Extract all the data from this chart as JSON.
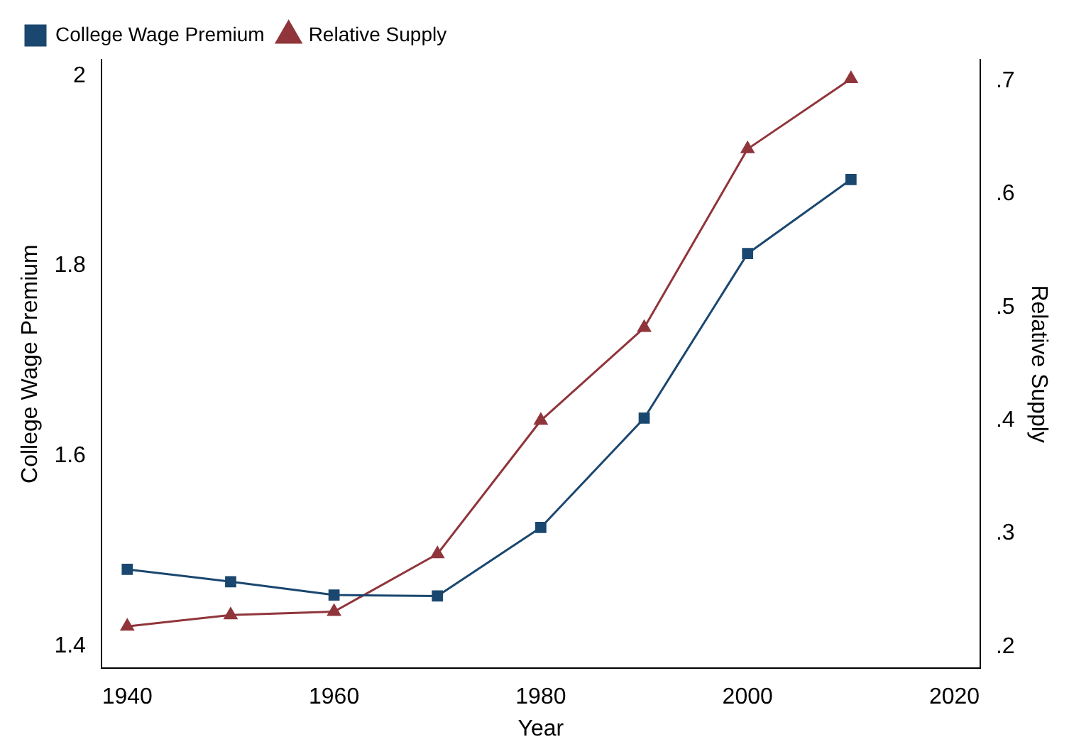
{
  "chart_data": {
    "type": "line",
    "xlabel": "Year",
    "ylabel": "College Wage Premium",
    "y2label": "Relative Supply",
    "x": [
      1940,
      1950,
      1960,
      1970,
      1980,
      1990,
      2000,
      2010
    ],
    "series": [
      {
        "name": "College Wage Premium",
        "color": "#1a476f",
        "marker": "square",
        "values": [
          1.481,
          1.468,
          1.454,
          1.453,
          1.525,
          1.64,
          1.813,
          1.891
        ]
      },
      {
        "name": "Relative Supply",
        "color": "#90353b",
        "marker": "triangle",
        "axis": "y2",
        "values": [
          0.218,
          0.228,
          0.231,
          0.282,
          0.4,
          0.482,
          0.64,
          0.702
        ]
      }
    ],
    "xlim": [
      1937.5,
      2022.5
    ],
    "xticks": [
      1940,
      1960,
      1980,
      2000,
      2020
    ],
    "ylim": [
      1.377,
      2.017
    ],
    "yticks": [
      1.4,
      1.6,
      1.8,
      2
    ],
    "y2lim": [
      0.181,
      0.719
    ],
    "y2ticks": [
      {
        "value": 0.2,
        "label": ".2"
      },
      {
        "value": 0.3,
        "label": ".3"
      },
      {
        "value": 0.4,
        "label": ".4"
      },
      {
        "value": 0.5,
        "label": ".5"
      },
      {
        "value": 0.6,
        "label": ".6"
      },
      {
        "value": 0.7,
        "label": ".7"
      }
    ],
    "legend": "top left",
    "grid": false,
    "line_style": "solid"
  }
}
